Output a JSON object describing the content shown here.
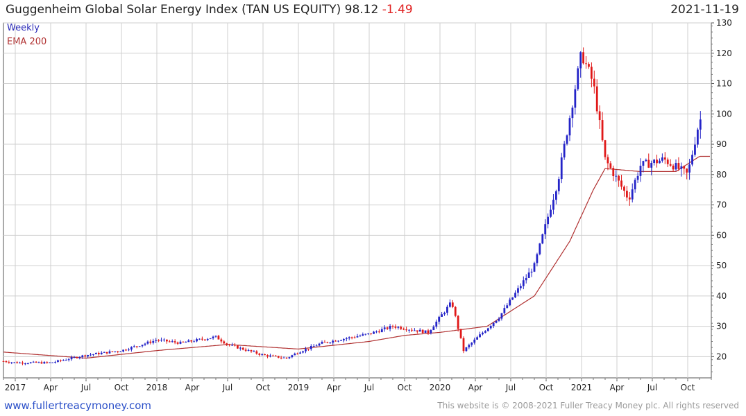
{
  "header": {
    "title": "Guggenheim Global Solar Energy Index (TAN US EQUITY)",
    "last": "98.12",
    "change": "-1.49",
    "date": "2021-11-19"
  },
  "legend": {
    "weekly": "Weekly",
    "ema": "EMA 200"
  },
  "footer": {
    "left": "www.fullertreacymoney.com",
    "right": "This website is © 2008-2021 Fuller Treacy Money plc. All rights reserved"
  },
  "colors": {
    "up": "#2424c8",
    "down": "#e01818",
    "ema": "#b03030",
    "grid": "#cfcfcf"
  },
  "chart_data": {
    "type": "candlestick",
    "title": "Guggenheim Global Solar Energy Index (TAN US EQUITY) 98.12 -1.49",
    "timeframe": "Weekly",
    "indicator": "EMA 200",
    "ylim": [
      13,
      130
    ],
    "y_ticks": [
      20,
      30,
      40,
      50,
      60,
      70,
      80,
      90,
      100,
      110,
      120,
      130
    ],
    "x_ticks": [
      "2017",
      "Apr",
      "Jul",
      "Oct",
      "2018",
      "Apr",
      "Jul",
      "Oct",
      "2019",
      "Apr",
      "Jul",
      "Oct",
      "2020",
      "Apr",
      "Jul",
      "Oct",
      "2021",
      "Apr",
      "Jul",
      "Oct"
    ],
    "price_keypoints": [
      [
        "2016-12",
        18.5
      ],
      [
        "2017-01",
        18.0
      ],
      [
        "2017-04",
        18.0
      ],
      [
        "2017-07",
        20.5
      ],
      [
        "2017-10",
        22.0
      ],
      [
        "2018-01",
        25.5
      ],
      [
        "2018-03",
        24.5
      ],
      [
        "2018-06",
        26.5
      ],
      [
        "2018-07",
        24.0
      ],
      [
        "2018-10",
        20.5
      ],
      [
        "2018-12",
        19.5
      ],
      [
        "2019-01",
        21.5
      ],
      [
        "2019-03",
        24.5
      ],
      [
        "2019-07",
        27.5
      ],
      [
        "2019-09",
        30.0
      ],
      [
        "2019-12",
        28.0
      ],
      [
        "2020-02",
        38.0
      ],
      [
        "2020-03",
        22.0
      ],
      [
        "2020-06",
        33.0
      ],
      [
        "2020-09",
        50.0
      ],
      [
        "2020-11",
        78.0
      ],
      [
        "2021-01",
        120.0
      ],
      [
        "2021-02",
        110.0
      ],
      [
        "2021-03",
        85.0
      ],
      [
        "2021-05",
        72.0
      ],
      [
        "2021-06",
        83.0
      ],
      [
        "2021-08",
        85.0
      ],
      [
        "2021-10",
        80.0
      ],
      [
        "2021-11",
        98.12
      ]
    ],
    "ema_keypoints": [
      [
        "2016-12",
        21.5
      ],
      [
        "2017-07",
        19.5
      ],
      [
        "2018-01",
        22.0
      ],
      [
        "2018-07",
        24.0
      ],
      [
        "2019-01",
        22.5
      ],
      [
        "2019-07",
        25.0
      ],
      [
        "2019-10",
        27.0
      ],
      [
        "2020-01",
        28.0
      ],
      [
        "2020-05",
        30.0
      ],
      [
        "2020-09",
        40.0
      ],
      [
        "2020-12",
        58.0
      ],
      [
        "2021-02",
        75.0
      ],
      [
        "2021-03",
        82.0
      ],
      [
        "2021-06",
        81.0
      ],
      [
        "2021-09",
        81.0
      ],
      [
        "2021-11",
        86.0
      ]
    ]
  }
}
